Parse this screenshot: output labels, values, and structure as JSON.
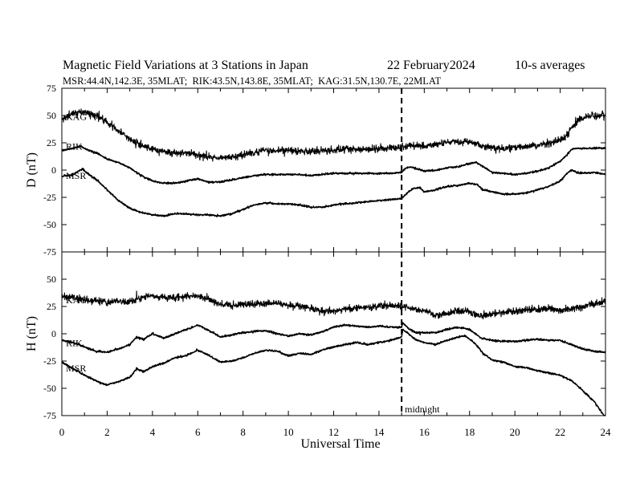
{
  "header": {
    "title": "Magnetic Field Variations at 3 Stations in Japan",
    "date": "22 February2024",
    "averaging": "10-s averages",
    "stations": "MSR:44.4N,142.3E, 35MLAT;  RIK:43.5N,143.8E, 35MLAT;  KAG:31.5N,130.7E, 22MLAT"
  },
  "chart_data": [
    {
      "type": "line",
      "panel": "D",
      "ylabel": "D (nT)",
      "ylim": [
        -75,
        75
      ],
      "yticks": [
        75,
        50,
        25,
        0,
        -25,
        -50,
        -75
      ],
      "xlim": [
        0,
        24
      ],
      "grid": false,
      "series": [
        {
          "name": "KAG",
          "noise": 1.6,
          "hour": [
            0,
            0.5,
            1,
            1.5,
            2,
            2.5,
            3,
            3.5,
            4,
            4.5,
            5,
            5.5,
            6,
            6.5,
            7,
            7.5,
            8,
            8.5,
            9,
            9.5,
            10,
            10.5,
            11,
            11.5,
            12,
            12.5,
            13,
            13.5,
            14,
            14.5,
            15,
            15.5,
            16,
            16.5,
            17,
            17.5,
            18,
            18.5,
            19,
            19.5,
            20,
            20.5,
            21,
            21.5,
            22,
            22.3,
            22.6,
            23,
            23.5,
            24
          ],
          "value": [
            47,
            52,
            53,
            50,
            44,
            36,
            28,
            23,
            19,
            17,
            16,
            16,
            14,
            12,
            11,
            12,
            14,
            16,
            18,
            18,
            18,
            17,
            17,
            18,
            18,
            19,
            19,
            19,
            19,
            20,
            21,
            23,
            22,
            23,
            25,
            26,
            26,
            22,
            20,
            20,
            21,
            22,
            23,
            24,
            27,
            32,
            42,
            48,
            50,
            50
          ]
        },
        {
          "name": "RIK",
          "noise": 0.4,
          "hour": [
            0,
            0.5,
            0.8,
            1.2,
            1.6,
            2,
            2.5,
            3,
            3.5,
            4,
            4.5,
            5,
            5.5,
            6,
            6.5,
            7,
            7.5,
            8,
            8.5,
            9,
            9.5,
            10,
            10.5,
            11,
            11.5,
            12,
            12.5,
            13,
            13.5,
            14,
            14.5,
            15,
            15.2,
            15.4,
            15.7,
            16,
            16.5,
            17,
            17.5,
            18,
            18.3,
            18.6,
            19,
            19.5,
            20,
            20.5,
            21,
            21.5,
            22,
            22.3,
            22.5,
            22.7,
            23,
            23.5,
            24
          ],
          "value": [
            18,
            20,
            22,
            18,
            15,
            10,
            7,
            2,
            -5,
            -10,
            -12,
            -12,
            -10,
            -8,
            -11,
            -11,
            -9,
            -7,
            -5,
            -4,
            -4,
            -4,
            -4,
            -5,
            -4,
            -3,
            -3,
            -3,
            -3,
            -3,
            -3,
            -2,
            2,
            3,
            1,
            -1,
            0,
            2,
            3,
            6,
            7,
            3,
            -2,
            -3,
            -4,
            -3,
            -1,
            2,
            8,
            14,
            19,
            20,
            20,
            20,
            20
          ]
        },
        {
          "name": "MSR",
          "noise": 0.4,
          "hour": [
            0,
            0.5,
            0.9,
            1.2,
            1.6,
            2,
            2.5,
            3,
            3.5,
            4,
            4.5,
            5,
            5.5,
            6,
            6.5,
            7,
            7.5,
            8,
            8.5,
            9,
            9.5,
            10,
            10.5,
            11,
            11.5,
            12,
            12.5,
            13,
            13.5,
            14,
            14.5,
            15,
            15.1,
            15.3,
            15.5,
            15.8,
            16,
            16.5,
            17,
            17.5,
            18,
            18.3,
            18.6,
            19,
            19.5,
            20,
            20.5,
            21,
            21.5,
            22,
            22.3,
            22.5,
            22.7,
            23,
            23.5,
            24
          ],
          "value": [
            -6,
            -4,
            1,
            -4,
            -10,
            -18,
            -28,
            -35,
            -39,
            -41,
            -42,
            -40,
            -40,
            -41,
            -41,
            -42,
            -40,
            -36,
            -32,
            -30,
            -31,
            -31,
            -32,
            -34,
            -34,
            -32,
            -31,
            -30,
            -29,
            -28,
            -27,
            -26,
            -24,
            -20,
            -17,
            -16,
            -20,
            -18,
            -15,
            -14,
            -12,
            -13,
            -18,
            -20,
            -22,
            -22,
            -21,
            -18,
            -15,
            -10,
            -3,
            0,
            -2,
            -3,
            -2,
            -4
          ]
        }
      ]
    },
    {
      "type": "line",
      "panel": "H",
      "ylabel": "H (nT)",
      "ylim": [
        -75,
        75
      ],
      "yticks": [
        75,
        50,
        25,
        0,
        -25,
        -50,
        -75
      ],
      "xlim": [
        0,
        24
      ],
      "xticks": [
        0,
        2,
        4,
        6,
        8,
        10,
        12,
        14,
        16,
        18,
        20,
        22,
        24
      ],
      "xlabel": "Universal Time",
      "grid": false,
      "series": [
        {
          "name": "KAG",
          "noise": 1.5,
          "hour": [
            0,
            0.5,
            1,
            1.5,
            2,
            2.5,
            3,
            3.5,
            4,
            4.5,
            5,
            5.5,
            6,
            6.5,
            7,
            7.5,
            8,
            8.5,
            9,
            9.5,
            10,
            10.5,
            11,
            11.5,
            12,
            12.5,
            13,
            13.5,
            14,
            14.5,
            15,
            15.5,
            16,
            16.5,
            17,
            17.5,
            18,
            18.5,
            19,
            19.5,
            20,
            20.5,
            21,
            21.5,
            22,
            22.5,
            23,
            23.5,
            24
          ],
          "value": [
            34,
            33,
            31,
            30,
            29,
            30,
            29,
            33,
            35,
            33,
            33,
            34,
            35,
            31,
            27,
            26,
            27,
            27,
            28,
            28,
            26,
            25,
            23,
            21,
            20,
            23,
            24,
            24,
            25,
            26,
            25,
            23,
            21,
            17,
            18,
            21,
            20,
            16,
            18,
            20,
            20,
            22,
            22,
            23,
            22,
            23,
            25,
            27,
            30
          ]
        },
        {
          "name": "RIK",
          "noise": 0.4,
          "hour": [
            0,
            0.5,
            1,
            1.5,
            2,
            2.5,
            3,
            3.3,
            3.6,
            4,
            4.5,
            5,
            5.5,
            6,
            6.5,
            7,
            7.5,
            8,
            8.5,
            9,
            9.5,
            10,
            10.5,
            11,
            11.5,
            12,
            12.5,
            13,
            13.5,
            14,
            14.5,
            15,
            15.05,
            15.3,
            15.6,
            16,
            16.5,
            17,
            17.5,
            18,
            18.5,
            19,
            19.5,
            20,
            20.5,
            21,
            21.5,
            22,
            22.5,
            23,
            23.5,
            24
          ],
          "value": [
            -6,
            -8,
            -12,
            -16,
            -17,
            -14,
            -10,
            -3,
            -5,
            0,
            -4,
            0,
            4,
            8,
            3,
            -3,
            -1,
            1,
            2,
            3,
            0,
            -2,
            0,
            -1,
            2,
            6,
            8,
            7,
            6,
            7,
            6,
            6,
            10,
            5,
            1,
            1,
            1,
            4,
            6,
            4,
            -4,
            -6,
            -7,
            -7,
            -6,
            -5,
            -6,
            -6,
            -10,
            -14,
            -16,
            -17
          ]
        },
        {
          "name": "MSR",
          "noise": 0.4,
          "hour": [
            0,
            0.5,
            1,
            1.5,
            2,
            2.5,
            3,
            3.3,
            3.6,
            4,
            4.5,
            5,
            5.5,
            6,
            6.5,
            7,
            7.5,
            8,
            8.5,
            9,
            9.5,
            10,
            10.5,
            11,
            11.5,
            12,
            12.5,
            13,
            13.5,
            14,
            14.5,
            15,
            15.05,
            15.3,
            15.6,
            16,
            16.5,
            17,
            17.5,
            17.8,
            18.2,
            18.6,
            19,
            19.5,
            20,
            20.5,
            21,
            21.5,
            22,
            22.5,
            23,
            23.5,
            24
          ],
          "value": [
            -26,
            -32,
            -38,
            -43,
            -47,
            -44,
            -40,
            -32,
            -35,
            -30,
            -27,
            -22,
            -20,
            -15,
            -20,
            -26,
            -25,
            -22,
            -18,
            -15,
            -16,
            -20,
            -18,
            -19,
            -15,
            -12,
            -10,
            -8,
            -10,
            -8,
            -6,
            -3,
            4,
            0,
            -5,
            -8,
            -10,
            -6,
            -3,
            -2,
            -8,
            -18,
            -24,
            -26,
            -30,
            -31,
            -34,
            -36,
            -38,
            -43,
            -52,
            -62,
            -77
          ]
        }
      ]
    }
  ],
  "annotations": {
    "midnight_hour": 15,
    "midnight_label": "midnight"
  }
}
